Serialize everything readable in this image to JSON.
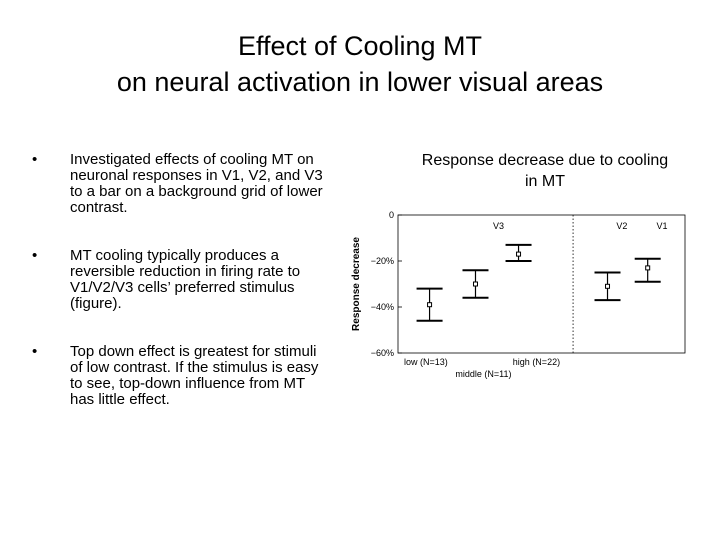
{
  "title": {
    "line1": "Effect of Cooling MT",
    "line2": "on neural activation in lower visual areas"
  },
  "bullets": [
    {
      "marker": "•",
      "text": "Investigated effects of cooling MT on neuronal responses in V1, V2, and V3 to a bar on a background grid of lower contrast."
    },
    {
      "marker": "•",
      "text": "MT cooling typically produces a reversible reduction in firing rate to V1/V2/V3 cells’ preferred stimulus (figure)."
    },
    {
      "marker": "•",
      "text": "Top down effect is greatest for stimuli of low contrast.  If the stimulus is easy to see, top-down influence from MT has little effect."
    }
  ],
  "caption": "Response decrease due to cooling in MT",
  "chart_data": {
    "type": "scatter",
    "ylabel": "Response decrease",
    "ylim": [
      -60,
      0
    ],
    "yticks": [
      "0",
      "−20%",
      "−40%",
      "−60%"
    ],
    "ytick_values": [
      0,
      -20,
      -40,
      -60
    ],
    "panels": [
      "V3",
      "V2",
      "V1"
    ],
    "x_labels": [
      "low (N=13)",
      "middle (N=11)",
      "high (N=22)"
    ],
    "points": [
      {
        "panel": "V3",
        "group": "low",
        "mean": -39,
        "lower": -46,
        "upper": -32
      },
      {
        "panel": "V3",
        "group": "middle",
        "mean": -30,
        "lower": -36,
        "upper": -24
      },
      {
        "panel": "V3",
        "group": "high",
        "mean": -17,
        "lower": -20,
        "upper": -13
      },
      {
        "panel": "V2",
        "group": "low",
        "mean": -31,
        "lower": -37,
        "upper": -25
      },
      {
        "panel": "V1",
        "group": "middle",
        "mean": -23,
        "lower": -29,
        "upper": -19
      }
    ]
  }
}
